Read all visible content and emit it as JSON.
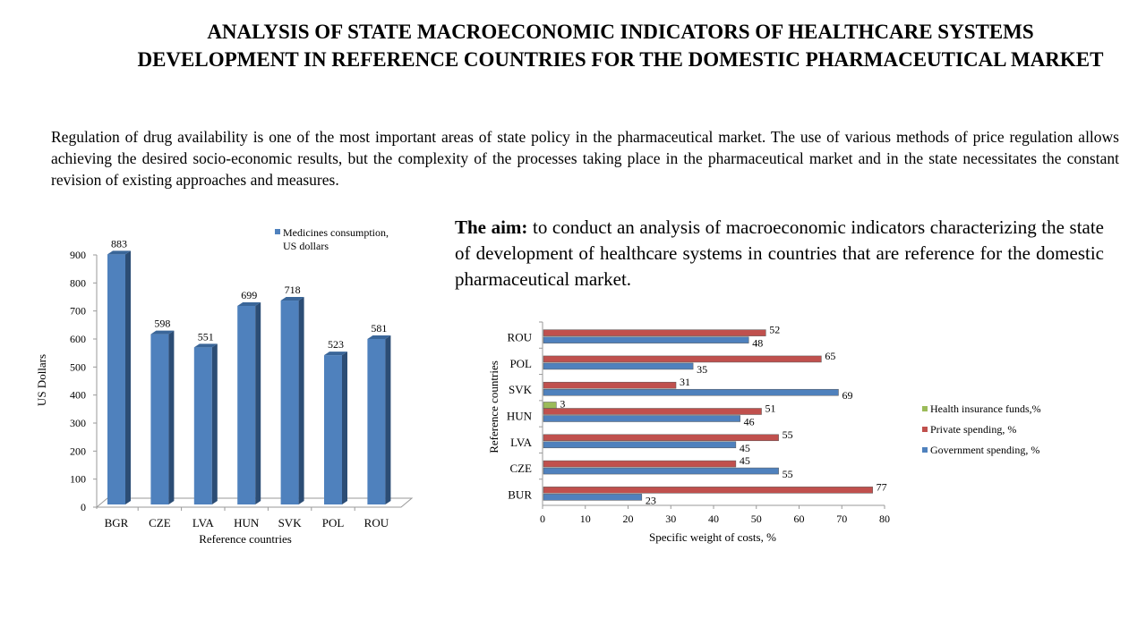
{
  "title": "ANALYSIS OF STATE MACROECONOMIC INDICATORS OF HEALTHCARE SYSTEMS DEVELOPMENT IN REFERENCE COUNTRIES FOR THE DOMESTIC PHARMACEUTICAL MARKET",
  "intro": "Regulation of drug availability is one of the most important areas of state policy in the pharmaceutical market. The use of various methods of price regulation allows achieving the desired socio-economic results, but the complexity of the processes taking place in the pharmaceutical market and in the state necessitates the constant revision of existing approaches and measures.",
  "aim": {
    "label": "The aim:",
    "text": " to conduct an analysis of macroeconomic indicators characterizing the state of development of healthcare systems in countries that are reference for the domestic pharmaceutical market."
  },
  "chart_data": [
    {
      "type": "bar",
      "categories": [
        "BGR",
        "CZE",
        "LVA",
        "HUN",
        "SVK",
        "POL",
        "ROU"
      ],
      "series": [
        {
          "name": "Medicines consumption, US dollars",
          "values": [
            883,
            598,
            551,
            699,
            718,
            523,
            581
          ],
          "color": "#4f81bd"
        }
      ],
      "xlabel": "Reference countries",
      "ylabel": "US Dollars",
      "ylim": [
        0,
        900
      ],
      "yticks": [
        0,
        100,
        200,
        300,
        400,
        500,
        600,
        700,
        800,
        900
      ],
      "legend": "top-right",
      "data_labels": true,
      "style": "3d"
    },
    {
      "type": "bar",
      "orientation": "horizontal",
      "categories": [
        "BUR",
        "CZE",
        "LVA",
        "HUN",
        "SVK",
        "POL",
        "ROU"
      ],
      "series": [
        {
          "name": "Government spending, %",
          "values": [
            23,
            55,
            45,
            46,
            69,
            35,
            48
          ],
          "color": "#4f81bd"
        },
        {
          "name": "Private spending, %",
          "values": [
            77,
            45,
            55,
            51,
            31,
            65,
            52
          ],
          "color": "#c0504d"
        },
        {
          "name": "Health insurance funds,%",
          "values": [
            null,
            null,
            null,
            3,
            null,
            null,
            null
          ],
          "color": "#9bbb59"
        }
      ],
      "xlabel": "Specific weight of costs, %",
      "ylabel": "Reference countries",
      "xlim": [
        0,
        80
      ],
      "xticks": [
        0,
        10,
        20,
        30,
        40,
        50,
        60,
        70,
        80
      ],
      "legend": "right",
      "data_labels": true
    }
  ]
}
